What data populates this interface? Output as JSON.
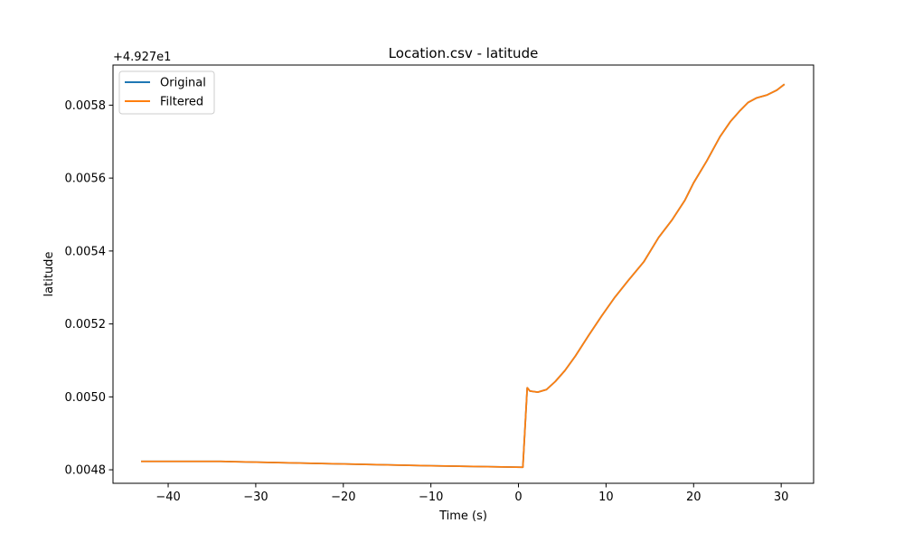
{
  "chart_data": {
    "type": "line",
    "title": "Location.csv - latitude",
    "xlabel": "Time (s)",
    "ylabel": "latitude",
    "offset_label": "+4.927e1",
    "xlim": [
      -46.3,
      33.7
    ],
    "ylim": [
      0.004763,
      0.00591
    ],
    "xticks": [
      -40,
      -30,
      -20,
      -10,
      0,
      10,
      20,
      30
    ],
    "xtick_labels": [
      "−40",
      "−30",
      "−20",
      "−10",
      "0",
      "10",
      "20",
      "30"
    ],
    "yticks": [
      0.0048,
      0.005,
      0.0052,
      0.0054,
      0.0056,
      0.0058
    ],
    "ytick_labels": [
      "0.0048",
      "0.0050",
      "0.0052",
      "0.0054",
      "0.0056",
      "0.0058"
    ],
    "grid": false,
    "legend_position": "top-left",
    "series": [
      {
        "name": "Original",
        "color": "#1f77b4",
        "x": [
          -43,
          -34,
          -20,
          -10,
          0.5,
          1.0,
          1.3,
          2.2,
          3.2,
          4.2,
          5.3,
          6.5,
          8.0,
          9.5,
          11.0,
          12.5,
          14.3,
          16.0,
          17.5,
          19.0,
          20.0,
          21.5,
          23.0,
          24.2,
          25.3,
          26.2,
          27.2,
          28.4,
          29.5,
          30.3
        ],
        "y": [
          0.004823,
          0.004823,
          0.004816,
          0.004811,
          0.004807,
          0.005025,
          0.005016,
          0.005013,
          0.00502,
          0.005042,
          0.005072,
          0.005112,
          0.005168,
          0.005222,
          0.005273,
          0.005318,
          0.00537,
          0.005437,
          0.005484,
          0.005539,
          0.005587,
          0.005647,
          0.005713,
          0.005755,
          0.005785,
          0.005807,
          0.00582,
          0.005828,
          0.005841,
          0.005856
        ]
      },
      {
        "name": "Filtered",
        "color": "#ff7f0e",
        "x": [
          -43,
          -34,
          -20,
          -10,
          0.5,
          1.0,
          1.3,
          2.2,
          3.2,
          4.2,
          5.3,
          6.5,
          8.0,
          9.5,
          11.0,
          12.5,
          14.3,
          16.0,
          17.5,
          19.0,
          20.0,
          21.5,
          23.0,
          24.2,
          25.3,
          26.2,
          27.2,
          28.4,
          29.5,
          30.3
        ],
        "y": [
          0.004823,
          0.004823,
          0.004816,
          0.004811,
          0.004807,
          0.005025,
          0.005016,
          0.005013,
          0.00502,
          0.005042,
          0.005072,
          0.005112,
          0.005168,
          0.005222,
          0.005273,
          0.005318,
          0.00537,
          0.005437,
          0.005484,
          0.005539,
          0.005587,
          0.005647,
          0.005713,
          0.005755,
          0.005785,
          0.005807,
          0.00582,
          0.005828,
          0.005841,
          0.005856
        ]
      }
    ]
  }
}
